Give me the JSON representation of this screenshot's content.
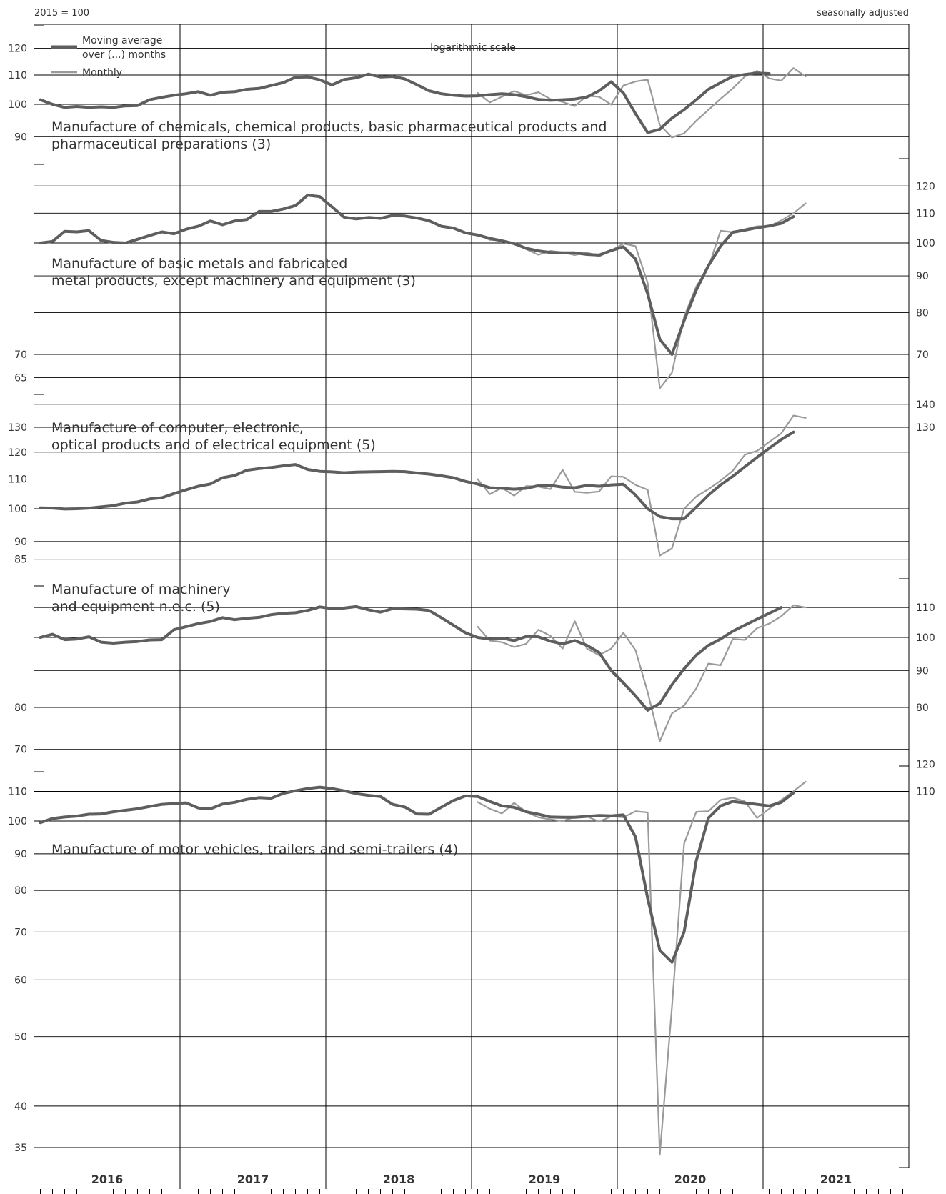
{
  "header": {
    "base_label": "2015 = 100",
    "adjustment_label": "seasonally adjusted",
    "scale_label": "logarithmic scale"
  },
  "legend": {
    "moving_average_line1": "Moving average",
    "moving_average_line2": "over (...) months",
    "monthly": "Monthly"
  },
  "colors": {
    "moving_average": "#5e5e5e",
    "monthly": "#9a9a9a",
    "grid": "#000000",
    "text": "#333333"
  },
  "x_axis": {
    "years": [
      "2016",
      "2017",
      "2018",
      "2019",
      "2020",
      "2021"
    ]
  },
  "chart_data": [
    {
      "type": "line",
      "title_lines": [
        "Manufacture of chemicals, chemical products, basic pharmaceutical products and",
        "pharmaceutical preparations (3)"
      ],
      "scale": "log",
      "ylim": [
        85,
        126
      ],
      "ticks": [
        90,
        100,
        110,
        120
      ],
      "tick_side": "left",
      "x_start": "2016-01",
      "monthly_start": "2019-01",
      "series": [
        {
          "name": "Moving average over (...) months",
          "values": [
            101.5,
            100,
            99,
            99.3,
            99,
            99.2,
            99,
            99.5,
            99.6,
            101.5,
            102.3,
            103,
            103.5,
            104.2,
            103,
            104,
            104.2,
            105,
            105.3,
            106.3,
            107.3,
            109.2,
            109.3,
            108.3,
            106.5,
            108.4,
            109,
            110.3,
            109.3,
            109.5,
            108.6,
            106.6,
            104.5,
            103.5,
            103,
            102.7,
            102.8,
            103.2,
            103.5,
            103.2,
            102.5,
            101.6,
            101.3,
            101.5,
            101.7,
            102.4,
            104.5,
            107.6,
            103.8,
            97,
            91.2,
            92.2,
            95.6,
            98.3,
            101.5,
            105,
            107.3,
            109.5,
            110.2,
            110.7,
            110.5
          ]
        },
        {
          "name": "Monthly",
          "values": [
            null,
            null,
            null,
            null,
            null,
            null,
            null,
            null,
            null,
            null,
            null,
            null,
            null,
            null,
            null,
            null,
            null,
            null,
            null,
            null,
            null,
            null,
            null,
            null,
            null,
            null,
            null,
            null,
            null,
            null,
            null,
            null,
            null,
            null,
            null,
            null,
            103.8,
            100.6,
            102.5,
            104.4,
            103,
            104,
            101.7,
            100.8,
            99.4,
            102.8,
            102.5,
            99.9,
            106.3,
            107.7,
            108.4,
            93.5,
            89.8,
            91,
            94.8,
            98.2,
            101.8,
            105.3,
            109.5,
            111.5,
            108.8,
            108,
            112.5,
            109.5
          ]
        }
      ]
    },
    {
      "type": "line",
      "title_lines": [
        "Manufacture of basic metals and fabricated",
        "metal products, except machinery and equipment (3)"
      ],
      "scale": "log",
      "ylim": [
        63,
        122
      ],
      "ticks": [
        70,
        80,
        90,
        100,
        110,
        120
      ],
      "left_ticks": [
        65,
        70
      ],
      "right_ticks": [
        70,
        80,
        90,
        100,
        110,
        120
      ],
      "x_start": "2016-01",
      "monthly_start": "2019-01",
      "series": [
        {
          "name": "Moving average over (...) months",
          "values": [
            100,
            100.5,
            103.8,
            103.6,
            104,
            100.8,
            100.2,
            100,
            101.2,
            102.4,
            103.6,
            103,
            104.5,
            105.5,
            107.3,
            106,
            107.3,
            107.8,
            110.6,
            110.6,
            111.5,
            112.7,
            116.5,
            116,
            112.3,
            108.6,
            108,
            108.5,
            108.2,
            109.2,
            109,
            108.3,
            107.4,
            105.5,
            104.9,
            103.3,
            102.6,
            101.5,
            100.7,
            99.8,
            98.3,
            97.5,
            97,
            96.9,
            96.9,
            96.4,
            96.2,
            97.6,
            98.8,
            95,
            85,
            73.5,
            70,
            78,
            86,
            93,
            99,
            103.5,
            104.2,
            105,
            105.6,
            106.5,
            108.8
          ]
        },
        {
          "name": "Monthly",
          "values": [
            null,
            null,
            null,
            null,
            null,
            null,
            null,
            null,
            null,
            null,
            null,
            null,
            null,
            null,
            null,
            null,
            null,
            null,
            null,
            null,
            null,
            null,
            null,
            null,
            null,
            null,
            null,
            null,
            null,
            null,
            null,
            null,
            null,
            null,
            null,
            null,
            102.8,
            101,
            100.8,
            100,
            98,
            96.3,
            97.5,
            97,
            96.2,
            97,
            95.8,
            97.6,
            99.8,
            99,
            88,
            62.8,
            66,
            79,
            87,
            92.5,
            104,
            103.5,
            104.5,
            105.5,
            105.5,
            107.5,
            110,
            113.5
          ]
        }
      ]
    },
    {
      "type": "line",
      "title_lines": [
        "Manufacture of computer, electronic,",
        "optical products and of electrical equipment (5)"
      ],
      "scale": "log",
      "ylim": [
        82,
        143
      ],
      "ticks": [
        90,
        100,
        110,
        120,
        130
      ],
      "left_ticks": [
        85,
        90,
        100,
        110,
        120,
        130
      ],
      "right_ticks": [
        130,
        140
      ],
      "x_start": "2016-01",
      "monthly_start": "2019-01",
      "series": [
        {
          "name": "Moving average over (...) months",
          "values": [
            100.3,
            100.2,
            99.9,
            100,
            100.2,
            100.6,
            101,
            101.8,
            102.2,
            103.2,
            103.6,
            105,
            106.3,
            107.5,
            108.3,
            110.5,
            111.3,
            113.2,
            113.8,
            114.2,
            114.8,
            115.3,
            113.5,
            112.8,
            112.6,
            112.3,
            112.5,
            112.6,
            112.7,
            112.8,
            112.7,
            112.2,
            111.8,
            111.2,
            110.5,
            109.2,
            108.3,
            107,
            106.8,
            106.5,
            106.8,
            107.7,
            107.8,
            107.2,
            107,
            107.8,
            107.5,
            108,
            108.2,
            104.5,
            100,
            97.5,
            96.8,
            96.8,
            100.5,
            104.5,
            108,
            111,
            114.5,
            118,
            121.5,
            125,
            128
          ]
        },
        {
          "name": "Monthly",
          "values": [
            null,
            null,
            null,
            null,
            null,
            null,
            null,
            null,
            null,
            null,
            null,
            null,
            null,
            null,
            null,
            null,
            null,
            null,
            null,
            null,
            null,
            null,
            null,
            null,
            null,
            null,
            null,
            null,
            null,
            null,
            null,
            null,
            null,
            null,
            null,
            null,
            110,
            104.8,
            107,
            104.3,
            107.6,
            107.4,
            106.5,
            113.3,
            105.6,
            105.3,
            105.7,
            111,
            110.8,
            108,
            106.3,
            86,
            88,
            100,
            104,
            106.5,
            109.5,
            113,
            119,
            120.5,
            124,
            127.5,
            135,
            134
          ]
        }
      ]
    },
    {
      "type": "line",
      "title_lines": [
        "Manufacture of machinery",
        "and equipment n.e.c. (5)"
      ],
      "scale": "log",
      "ylim": [
        68,
        118
      ],
      "ticks": [
        70,
        80,
        90,
        100,
        110
      ],
      "left_ticks": [
        70,
        80
      ],
      "right_ticks": [
        80,
        90,
        100,
        110
      ],
      "x_start": "2016-01",
      "monthly_start": "2019-01",
      "series": [
        {
          "name": "Moving average over (...) months",
          "values": [
            100,
            101,
            99.3,
            99.5,
            100.2,
            98.5,
            98.2,
            98.5,
            98.7,
            99.2,
            99.3,
            102.5,
            103.5,
            104.5,
            105.2,
            106.5,
            105.8,
            106.3,
            106.6,
            107.5,
            108,
            108.2,
            109,
            110.2,
            109.6,
            109.8,
            110.3,
            109.2,
            108.4,
            109.6,
            109.5,
            109.4,
            109,
            106.5,
            104,
            101.5,
            100,
            99.5,
            99.8,
            99,
            100.3,
            100.2,
            98.8,
            98,
            99,
            97.5,
            95.3,
            90,
            86.5,
            83,
            79.3,
            81,
            86,
            90.5,
            94.5,
            97.5,
            99.5,
            102,
            104,
            106,
            108,
            110
          ]
        },
        {
          "name": "Monthly",
          "values": [
            null,
            null,
            null,
            null,
            null,
            null,
            null,
            null,
            null,
            null,
            null,
            null,
            null,
            null,
            null,
            null,
            null,
            null,
            null,
            null,
            null,
            null,
            null,
            null,
            null,
            null,
            null,
            null,
            null,
            null,
            null,
            null,
            null,
            null,
            null,
            null,
            103.5,
            99,
            98.5,
            97,
            98,
            102.5,
            100.5,
            96.5,
            105.3,
            96.5,
            94.5,
            96.5,
            101.5,
            96,
            84,
            71.8,
            78.5,
            80.5,
            85,
            92,
            91.5,
            99.5,
            99.2,
            103,
            104.5,
            107,
            110.8,
            110
          ]
        }
      ]
    },
    {
      "type": "line",
      "title_lines": [
        "Manufacture of motor vehicles, trailers and semi-trailers (4)"
      ],
      "scale": "log",
      "ylim": [
        33.5,
        124
      ],
      "ticks": [
        35,
        40,
        50,
        60,
        70,
        80,
        90,
        100,
        110
      ],
      "left_ticks": [
        35,
        40,
        50,
        60,
        70,
        80,
        90,
        100,
        110
      ],
      "right_ticks": [
        110,
        120
      ],
      "x_start": "2016-01",
      "monthly_start": "2019-01",
      "series": [
        {
          "name": "Moving average over (...) months",
          "values": [
            99.5,
            100.8,
            101.3,
            101.6,
            102.2,
            102.3,
            103,
            103.5,
            104,
            104.8,
            105.5,
            105.8,
            106,
            104.3,
            104,
            105.6,
            106.2,
            107.2,
            107.8,
            107.6,
            109.3,
            110.2,
            111,
            111.5,
            111,
            110.2,
            109.2,
            108.6,
            108.2,
            105.5,
            104.6,
            102.3,
            102.2,
            104.5,
            106.8,
            108.4,
            108.2,
            106.5,
            105,
            104.5,
            103,
            102.2,
            101.3,
            101.2,
            101.2,
            101.5,
            101.8,
            101.7,
            102,
            95,
            78,
            66,
            63.5,
            70,
            88,
            101,
            105,
            106.5,
            106,
            105.5,
            105,
            106.2,
            109.5
          ]
        },
        {
          "name": "Monthly",
          "values": [
            null,
            null,
            null,
            null,
            null,
            null,
            null,
            null,
            null,
            null,
            null,
            null,
            null,
            null,
            null,
            null,
            null,
            null,
            null,
            null,
            null,
            null,
            null,
            null,
            null,
            null,
            null,
            null,
            null,
            null,
            null,
            null,
            null,
            null,
            null,
            null,
            106.3,
            104,
            102.5,
            106,
            103,
            101.2,
            100.5,
            100,
            101.3,
            101.5,
            99.8,
            101.5,
            101.2,
            103.2,
            102.8,
            34.2,
            55,
            93,
            103,
            103.2,
            107,
            107.8,
            106.5,
            101,
            104,
            107,
            110,
            113.5
          ]
        }
      ]
    }
  ]
}
